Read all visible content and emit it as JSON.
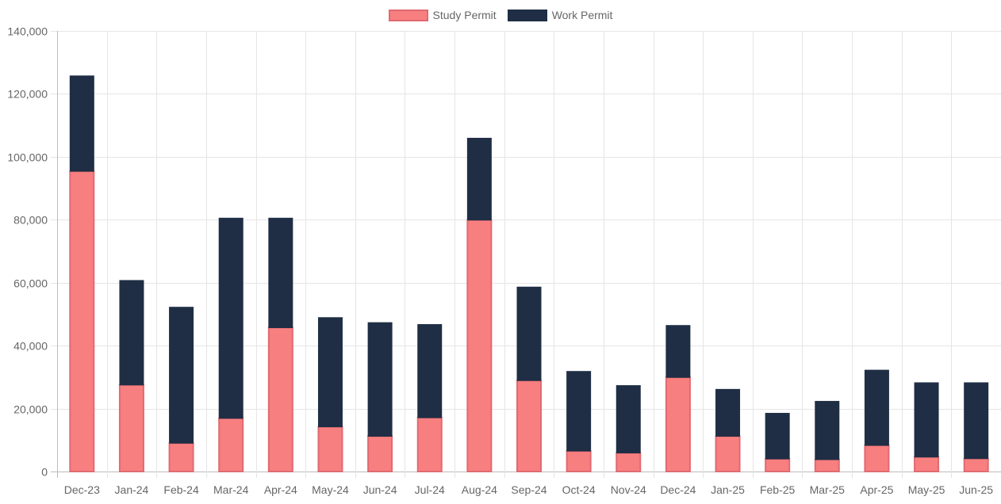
{
  "chart_data": {
    "type": "bar",
    "stacked": true,
    "categories": [
      "Dec-23",
      "Jan-24",
      "Feb-24",
      "Mar-24",
      "Apr-24",
      "May-24",
      "Jun-24",
      "Jul-24",
      "Aug-24",
      "Sep-24",
      "Oct-24",
      "Nov-24",
      "Dec-24",
      "Jan-25",
      "Feb-25",
      "Mar-25",
      "Apr-25",
      "May-25",
      "Jun-25"
    ],
    "series": [
      {
        "name": "Study Permit",
        "color": "#f87f7f",
        "border": "#e06a72",
        "values": [
          95400,
          27500,
          9000,
          16900,
          45700,
          14200,
          11200,
          17100,
          79900,
          28900,
          6500,
          5900,
          29900,
          11200,
          4000,
          3800,
          8300,
          4600,
          4100
        ]
      },
      {
        "name": "Work Permit",
        "color": "#1f2e44",
        "border": "#1f2e44",
        "values": [
          30300,
          33200,
          43200,
          63600,
          34800,
          34700,
          36100,
          29600,
          26000,
          29700,
          25300,
          21400,
          16500,
          14900,
          14500,
          18500,
          23900,
          23600,
          24100
        ]
      }
    ],
    "title": "",
    "xlabel": "",
    "ylabel": "",
    "ylim": [
      0,
      140000
    ],
    "yticks": [
      "0",
      "20,000",
      "40,000",
      "60,000",
      "80,000",
      "100,000",
      "120,000",
      "140,000"
    ],
    "grid": true,
    "legend_position": "top"
  }
}
